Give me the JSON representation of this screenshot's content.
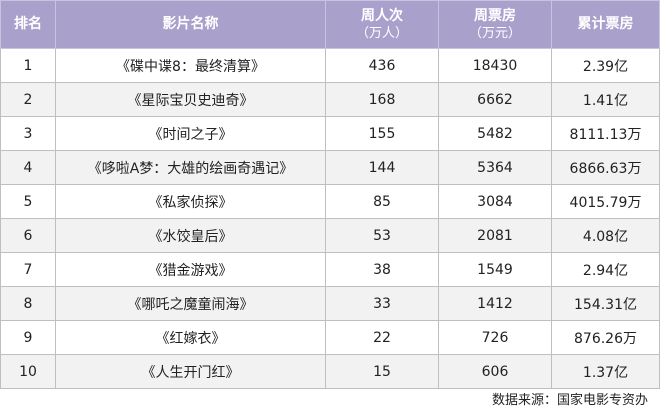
{
  "header": {
    "rank": "排名",
    "title": "影片名称",
    "admissions": "周人次",
    "admissions_unit": "（万人）",
    "weekly_gross": "周票房",
    "weekly_gross_unit": "（万元）",
    "total_gross": "累计票房"
  },
  "rows": [
    [
      "1",
      "《碟中谍8：最终清算》",
      "436",
      "18430",
      "2.39亿"
    ],
    [
      "2",
      "《星际宝贝史迪奇》",
      "168",
      "6662",
      "1.41亿"
    ],
    [
      "3",
      "《时间之子》",
      "155",
      "5482",
      "8111.13万"
    ],
    [
      "4",
      "《哆啦A梦：大雄的绘画奇遇记》",
      "144",
      "5364",
      "6866.63万"
    ],
    [
      "5",
      "《私家侦探》",
      "85",
      "3084",
      "4015.79万"
    ],
    [
      "6",
      "《水饺皇后》",
      "53",
      "2081",
      "4.08亿"
    ],
    [
      "7",
      "《猎金游戏》",
      "38",
      "1549",
      "2.94亿"
    ],
    [
      "8",
      "《哪吒之魔童闹海》",
      "33",
      "1412",
      "154.31亿"
    ],
    [
      "9",
      "《红嫁衣》",
      "22",
      "726",
      "876.26万"
    ],
    [
      "10",
      "《人生开门红》",
      "15",
      "606",
      "1.37亿"
    ]
  ],
  "footer": "数据来源：国家电影专资办",
  "colors": {
    "header_bg": "#a9a0cc",
    "stripe": "#f2f2f2"
  }
}
